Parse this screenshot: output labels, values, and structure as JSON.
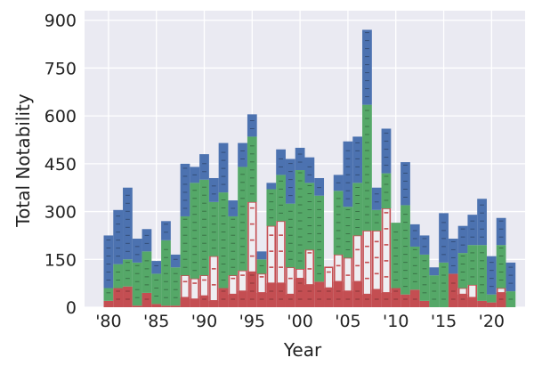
{
  "chart_data": {
    "type": "bar",
    "stacked": true,
    "title": "",
    "xlabel": "Year",
    "ylabel": "Total Notability",
    "ylim": [
      0,
      930
    ],
    "xlim": [
      1977.5,
      2023.5
    ],
    "grid": true,
    "x_ticks": [
      {
        "value": 1980,
        "label": "'80"
      },
      {
        "value": 1985,
        "label": "'85"
      },
      {
        "value": 1990,
        "label": "'90"
      },
      {
        "value": 1995,
        "label": "'95"
      },
      {
        "value": 2000,
        "label": "'00"
      },
      {
        "value": 2005,
        "label": "'05"
      },
      {
        "value": 2010,
        "label": "'10"
      },
      {
        "value": 2015,
        "label": "'15"
      },
      {
        "value": 2020,
        "label": "'20"
      }
    ],
    "y_ticks": [
      0,
      150,
      300,
      450,
      600,
      750,
      900
    ],
    "categories": [
      1980,
      1981,
      1982,
      1983,
      1984,
      1985,
      1986,
      1987,
      1988,
      1989,
      1990,
      1991,
      1992,
      1993,
      1994,
      1995,
      1996,
      1997,
      1998,
      1999,
      2000,
      2001,
      2002,
      2003,
      2004,
      2005,
      2006,
      2007,
      2008,
      2009,
      2010,
      2011,
      2012,
      2013,
      2014,
      2015,
      2016,
      2017,
      2018,
      2019,
      2020,
      2021,
      2022
    ],
    "series": [
      {
        "color": "#c44e52",
        "values": [
          20,
          60,
          65,
          5,
          45,
          10,
          5,
          5,
          30,
          25,
          35,
          20,
          60,
          40,
          50,
          110,
          45,
          75,
          75,
          40,
          90,
          70,
          80,
          60,
          80,
          50,
          80,
          40,
          55,
          45,
          60,
          40,
          55,
          20,
          0,
          0,
          105,
          40,
          30,
          20,
          15,
          45,
          0
        ]
      },
      {
        "color": "#eeeef2",
        "values": [
          0,
          0,
          0,
          0,
          0,
          0,
          0,
          0,
          70,
          65,
          65,
          140,
          0,
          60,
          65,
          220,
          60,
          180,
          195,
          85,
          30,
          110,
          0,
          65,
          85,
          105,
          145,
          200,
          185,
          265,
          0,
          0,
          0,
          0,
          0,
          0,
          0,
          20,
          40,
          0,
          0,
          15,
          0
        ]
      },
      {
        "color": "#55a868",
        "values": [
          40,
          75,
          85,
          135,
          130,
          95,
          205,
          120,
          185,
          300,
          300,
          170,
          300,
          185,
          325,
          205,
          45,
          115,
          145,
          200,
          310,
          210,
          270,
          0,
          200,
          160,
          165,
          395,
          65,
          110,
          205,
          280,
          135,
          145,
          100,
          140,
          0,
          110,
          125,
          175,
          25,
          135,
          50
        ]
      },
      {
        "color": "#4c72b0",
        "values": [
          165,
          170,
          225,
          75,
          70,
          40,
          60,
          40,
          165,
          50,
          80,
          75,
          155,
          50,
          75,
          70,
          25,
          20,
          80,
          140,
          70,
          80,
          55,
          0,
          50,
          205,
          145,
          235,
          70,
          140,
          0,
          135,
          70,
          60,
          25,
          155,
          110,
          85,
          95,
          145,
          120,
          85,
          90
        ]
      }
    ]
  }
}
